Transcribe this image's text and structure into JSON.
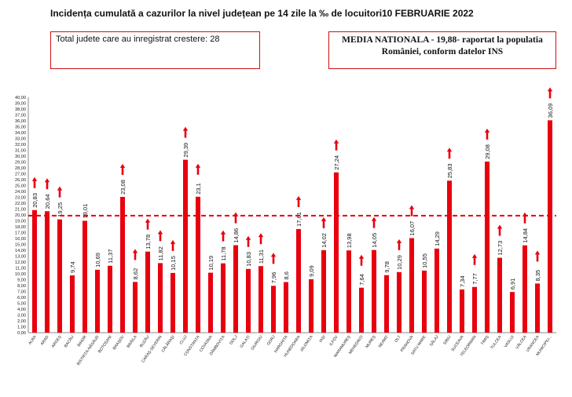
{
  "header": {
    "title": "Incidența cumulată a cazurilor la nivel județean pe 14 zile la ‰ de locuitori",
    "date": "10 FEBRUARIE 2022"
  },
  "info_box": {
    "text": "Total judete care au inregistrat crestere: 28"
  },
  "national_box": {
    "line1": "MEDIA NATIONALA - 19,88-  raportat la populatia",
    "line2": "României, conform datelor INS"
  },
  "colors": {
    "bar": "#e8000e",
    "line": "#e8000e",
    "arrow": "#e8000e",
    "axis": "#888888"
  },
  "chart_data": {
    "type": "bar",
    "categories": [
      "ALBA",
      "ARAD",
      "ARGEȘ",
      "BACĂU",
      "BIHOR",
      "BISTRIȚA-NĂSĂUD",
      "BOTOȘANI",
      "BRAȘOV",
      "BRĂILA",
      "BUZĂU",
      "CARAȘ-SEVERIN",
      "CĂLĂRAȘI",
      "CLUJ",
      "CONSTANȚA",
      "COVASNA",
      "DÂMBOVIȚA",
      "DOLJ",
      "GALAȚI",
      "GIURGIU",
      "GORJ",
      "HARGHITA",
      "HUNEDOARA",
      "IALOMIȚA",
      "IAȘI",
      "ILFOV",
      "MARAMUREȘ",
      "MEHEDINȚI",
      "MUREȘ",
      "NEAMȚ",
      "OLT",
      "PRAHOVA",
      "SATU MARE",
      "SĂLAJ",
      "SIBIU",
      "SUCEAVA",
      "TELEORMAN",
      "TIMIȘ",
      "TULCEA",
      "VASLUI",
      "VÂLCEA",
      "VRANCEA",
      "MUNICIPIU..."
    ],
    "values": [
      20.83,
      20.64,
      19.25,
      9.74,
      19.01,
      10.69,
      11.37,
      23.08,
      8.62,
      13.78,
      11.82,
      10.15,
      29.39,
      23.1,
      10.19,
      11.78,
      14.86,
      10.83,
      11.31,
      7.96,
      8.6,
      17.61,
      9.09,
      14.02,
      27.24,
      13.98,
      7.64,
      14.05,
      9.78,
      10.29,
      16.07,
      10.55,
      14.29,
      25.83,
      7.34,
      7.77,
      29.08,
      12.73,
      6.91,
      14.84,
      8.35,
      36.09
    ],
    "value_labels": [
      "20,83",
      "20,64",
      "19,25",
      "9,74",
      "19,01",
      "10,69",
      "11,37",
      "23,08",
      "8,62",
      "13,78",
      "11,82",
      "10,15",
      "29,39",
      "23,1",
      "10,19",
      "11,78",
      "14,86",
      "10,83",
      "11,31",
      "7,96",
      "8,6",
      "17,61",
      "9,09",
      "14,02",
      "27,24",
      "13,98",
      "7,64",
      "14,05",
      "9,78",
      "10,29",
      "16,07",
      "10,55",
      "14,29",
      "25,83",
      "7,34",
      "7,77",
      "29,08",
      "12,73",
      "6,91",
      "14,84",
      "8,35",
      "36,09"
    ],
    "increase": [
      true,
      true,
      true,
      false,
      false,
      false,
      false,
      true,
      true,
      true,
      true,
      true,
      true,
      true,
      false,
      true,
      true,
      true,
      true,
      true,
      false,
      true,
      false,
      true,
      true,
      false,
      true,
      true,
      false,
      true,
      true,
      false,
      false,
      true,
      false,
      true,
      true,
      true,
      false,
      true,
      true,
      true
    ],
    "reference_line": 19.88,
    "ylim": [
      0,
      40
    ],
    "y_ticks": [
      "0,00",
      "1,00",
      "2,00",
      "3,00",
      "4,00",
      "5,00",
      "6,00",
      "7,00",
      "8,00",
      "9,00",
      "10,00",
      "11,00",
      "12,00",
      "13,00",
      "14,00",
      "15,00",
      "16,00",
      "17,00",
      "18,00",
      "19,00",
      "20,00",
      "21,00",
      "22,00",
      "23,00",
      "24,00",
      "25,00",
      "26,00",
      "27,00",
      "28,00",
      "29,00",
      "30,00",
      "31,00",
      "32,00",
      "33,00",
      "34,00",
      "35,00",
      "36,00",
      "37,00",
      "38,00",
      "39,00",
      "40,00"
    ],
    "grid": false
  }
}
